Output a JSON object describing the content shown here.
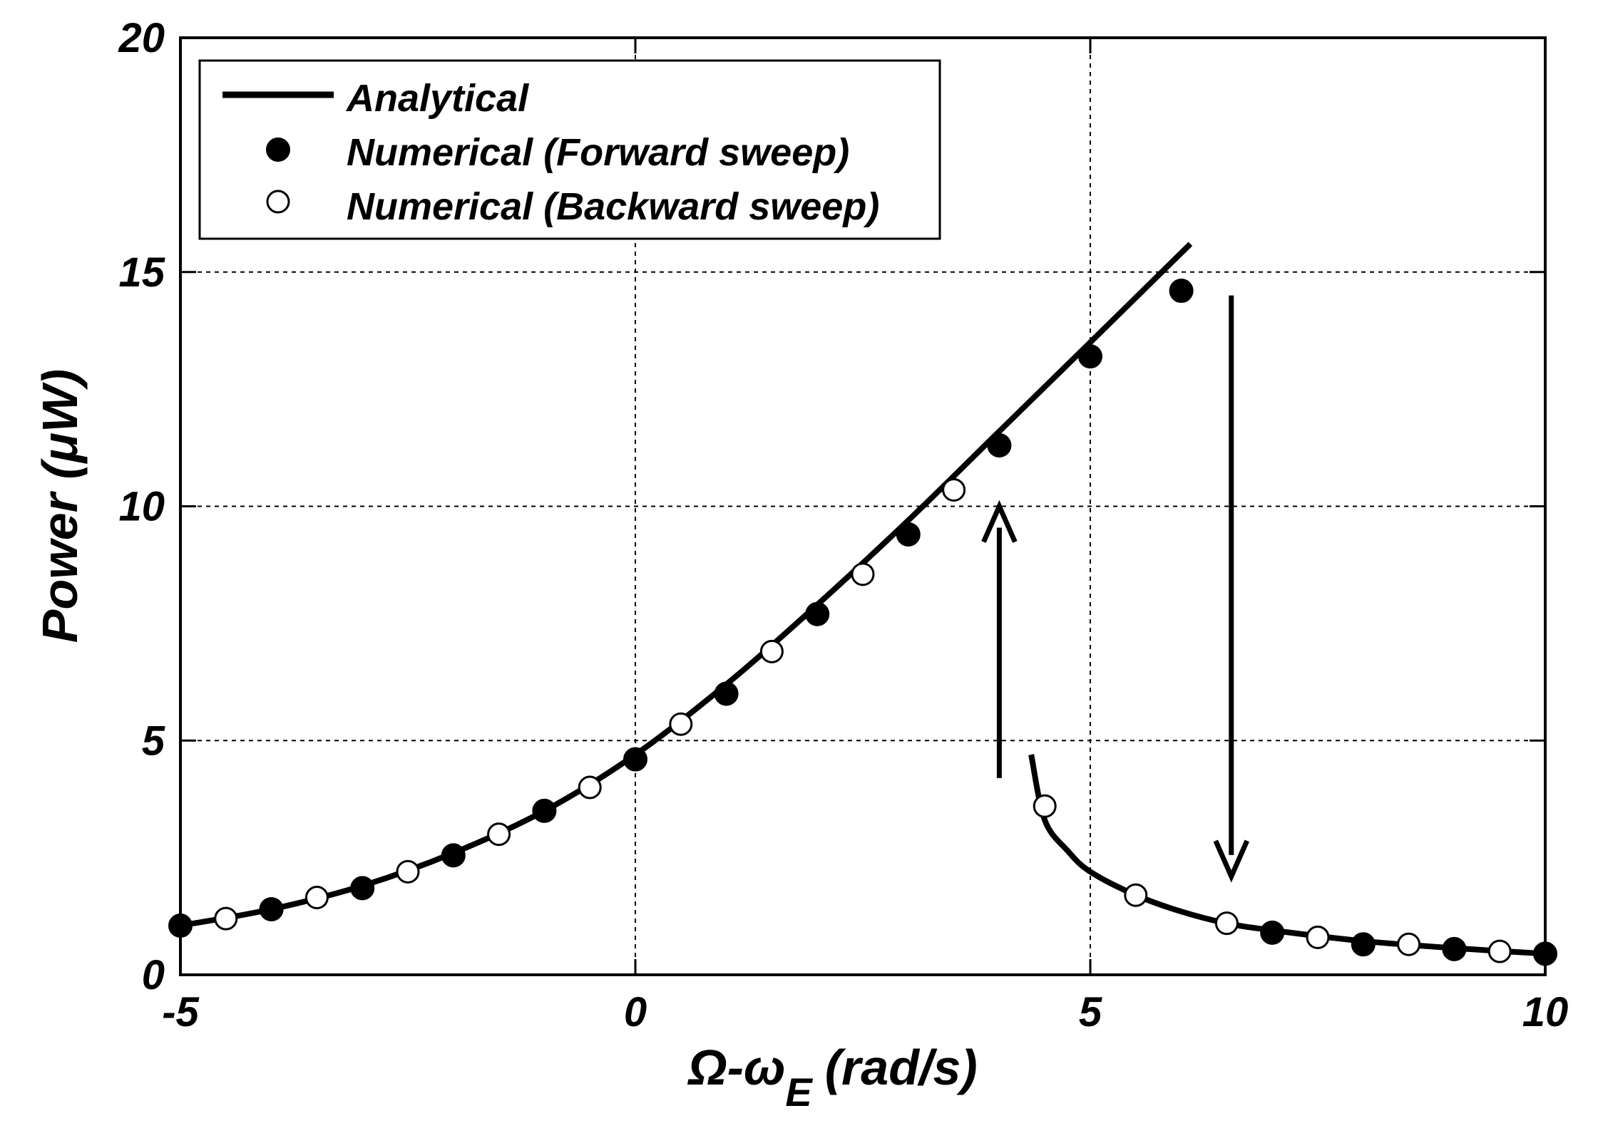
{
  "chart_data": {
    "type": "line",
    "xlabel_main": "Ω-ω",
    "xlabel_sub": "E",
    "xlabel_units": "(rad/s)",
    "ylabel": "Power (μW)",
    "xlim": [
      -5,
      10
    ],
    "ylim": [
      0,
      20
    ],
    "xticks": [
      -5,
      0,
      5,
      10
    ],
    "yticks": [
      0,
      5,
      10,
      15,
      20
    ],
    "xtick_labels": [
      "-5",
      "0",
      "5",
      "10"
    ],
    "ytick_labels": [
      "0",
      "5",
      "10",
      "15",
      "20"
    ],
    "grid": true,
    "legend_position": "top-left",
    "legend": {
      "analytical": "Analytical",
      "forward": "Numerical (Forward sweep)",
      "backward": "Numerical (Backward sweep)"
    },
    "series": [
      {
        "name": "Analytical (upper branch)",
        "style": "line",
        "x": [
          -5,
          -4,
          -3,
          -2,
          -1,
          0,
          1,
          2,
          3,
          4,
          5,
          6.1
        ],
        "y": [
          1.05,
          1.4,
          1.9,
          2.6,
          3.5,
          4.7,
          6.2,
          7.9,
          9.7,
          11.6,
          13.5,
          15.6
        ]
      },
      {
        "name": "Analytical (lower branch)",
        "style": "line",
        "x": [
          4.35,
          4.5,
          4.75,
          5,
          5.5,
          6,
          6.5,
          7,
          8,
          9,
          10
        ],
        "y": [
          4.7,
          3.3,
          2.65,
          2.2,
          1.7,
          1.35,
          1.1,
          0.95,
          0.72,
          0.57,
          0.45
        ]
      },
      {
        "name": "Numerical (Forward sweep)",
        "style": "filled-marker",
        "x": [
          -5,
          -4,
          -3,
          -2,
          -1,
          0,
          1,
          2,
          3,
          4,
          5,
          6,
          7,
          8,
          9,
          10
        ],
        "y": [
          1.05,
          1.4,
          1.85,
          2.55,
          3.5,
          4.6,
          6.0,
          7.7,
          9.4,
          11.3,
          13.2,
          14.6,
          0.9,
          0.65,
          0.55,
          0.45
        ]
      },
      {
        "name": "Numerical (Backward sweep)",
        "style": "open-marker",
        "x": [
          -4.5,
          -3.5,
          -2.5,
          -1.5,
          -0.5,
          0.5,
          1.5,
          2.5,
          3.5,
          4.5,
          5.5,
          6.5,
          7.5,
          8.5,
          9.5
        ],
        "y": [
          1.2,
          1.65,
          2.2,
          3.0,
          4.0,
          5.35,
          6.9,
          8.55,
          10.35,
          3.6,
          1.7,
          1.1,
          0.8,
          0.65,
          0.5
        ]
      }
    ],
    "annotations": [
      {
        "name": "jump-up-arrow",
        "x": 4.0,
        "y_from": 4.2,
        "y_to": 10.0
      },
      {
        "name": "jump-down-arrow",
        "x": 6.55,
        "y_from": 14.5,
        "y_to": 2.1
      }
    ]
  }
}
